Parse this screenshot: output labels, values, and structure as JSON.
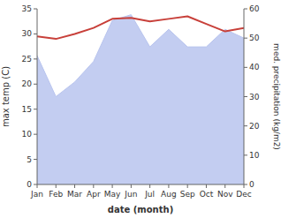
{
  "chart_data": {
    "type": "line",
    "xlabel": "date (month)",
    "ylabel": "max temp (C)",
    "y2label": "med. precipitation (kg/m2)",
    "categories": [
      "Jan",
      "Feb",
      "Mar",
      "Apr",
      "May",
      "Jun",
      "Jul",
      "Aug",
      "Sep",
      "Oct",
      "Nov",
      "Dec"
    ],
    "series": [
      {
        "type": "area",
        "axis": "y2",
        "color": "#b8c4ee",
        "values": [
          44,
          30,
          35,
          42,
          56,
          58,
          47,
          53,
          47,
          47,
          53,
          50
        ]
      },
      {
        "type": "line",
        "color": "#c8403a",
        "values": [
          29.5,
          29.0,
          30.0,
          31.2,
          33.0,
          33.2,
          32.5,
          33.0,
          33.5,
          32.0,
          30.5,
          31.2
        ]
      }
    ],
    "ylim": [
      0,
      35
    ],
    "yticks": [
      0,
      5,
      10,
      15,
      20,
      25,
      30,
      35
    ],
    "y2lim": [
      0,
      60
    ],
    "y2ticks": [
      0,
      10,
      20,
      30,
      40,
      50,
      60
    ]
  }
}
